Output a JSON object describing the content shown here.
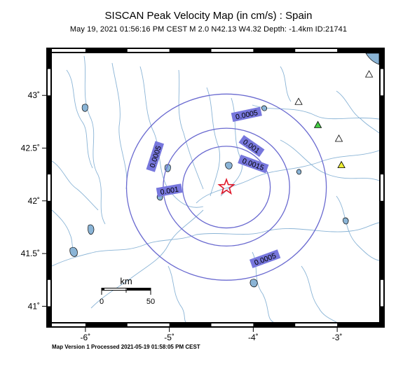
{
  "title": "SISCAN Peak Velocity Map (in cm/s) : Spain",
  "subtitle": "May 19, 2021 01:56:16 PM CEST   M 2.0   N42.13 W4.32   Depth: -1.4km   ID:21741",
  "footer": "Map Version 1 Processed 2021-05-19 01:58:05 PM CEST",
  "map": {
    "lon_range": [
      -6.4,
      -2.5
    ],
    "lat_range": [
      40.85,
      43.4
    ],
    "x_ticks": [
      {
        "value": -6,
        "label": "-6˚"
      },
      {
        "value": -5,
        "label": "-5˚"
      },
      {
        "value": -4,
        "label": "-4˚"
      },
      {
        "value": -3,
        "label": "-3˚"
      }
    ],
    "y_ticks": [
      {
        "value": 43,
        "label": "43˚"
      },
      {
        "value": 42.5,
        "label": "42.5˚"
      },
      {
        "value": 42,
        "label": "42˚"
      },
      {
        "value": 41.5,
        "label": "41.5˚"
      },
      {
        "value": 41,
        "label": "41˚"
      }
    ],
    "epicenter": {
      "lat": 42.13,
      "lon": -4.32
    },
    "contour_color": "#6a6ad0",
    "contour_label_bg": "#7777dd",
    "contours": [
      {
        "level": "0.0005",
        "radius_km": 98
      },
      {
        "level": "0.001",
        "radius_km": 62
      },
      {
        "level": "0.0015",
        "radius_km": 43
      }
    ],
    "contour_labels": [
      {
        "text": "0.0005",
        "lon": -4.08,
        "lat": 42.82,
        "angle": -12
      },
      {
        "text": "0.0005",
        "lon": -5.17,
        "lat": 42.42,
        "angle": -72
      },
      {
        "text": "0.0005",
        "lon": -3.86,
        "lat": 41.45,
        "angle": -20
      },
      {
        "text": "0.001",
        "lon": -4.02,
        "lat": 42.52,
        "angle": 35
      },
      {
        "text": "0.001",
        "lon": -5.0,
        "lat": 42.1,
        "angle": -10
      },
      {
        "text": "0.0015",
        "lon": -4.0,
        "lat": 42.35,
        "angle": 20
      }
    ],
    "stations": [
      {
        "lon": -3.23,
        "lat": 42.72,
        "color": "#44cc44"
      },
      {
        "lon": -3.46,
        "lat": 42.94,
        "color": "#ffffff"
      },
      {
        "lon": -2.98,
        "lat": 42.59,
        "color": "#ffffff"
      },
      {
        "lon": -2.62,
        "lat": 43.2,
        "color": "#ffffff"
      },
      {
        "lon": -2.95,
        "lat": 42.34,
        "color": "#eeee33"
      }
    ],
    "scale_bar": {
      "unit": "km",
      "label_left": "0",
      "label_right": "50"
    }
  }
}
